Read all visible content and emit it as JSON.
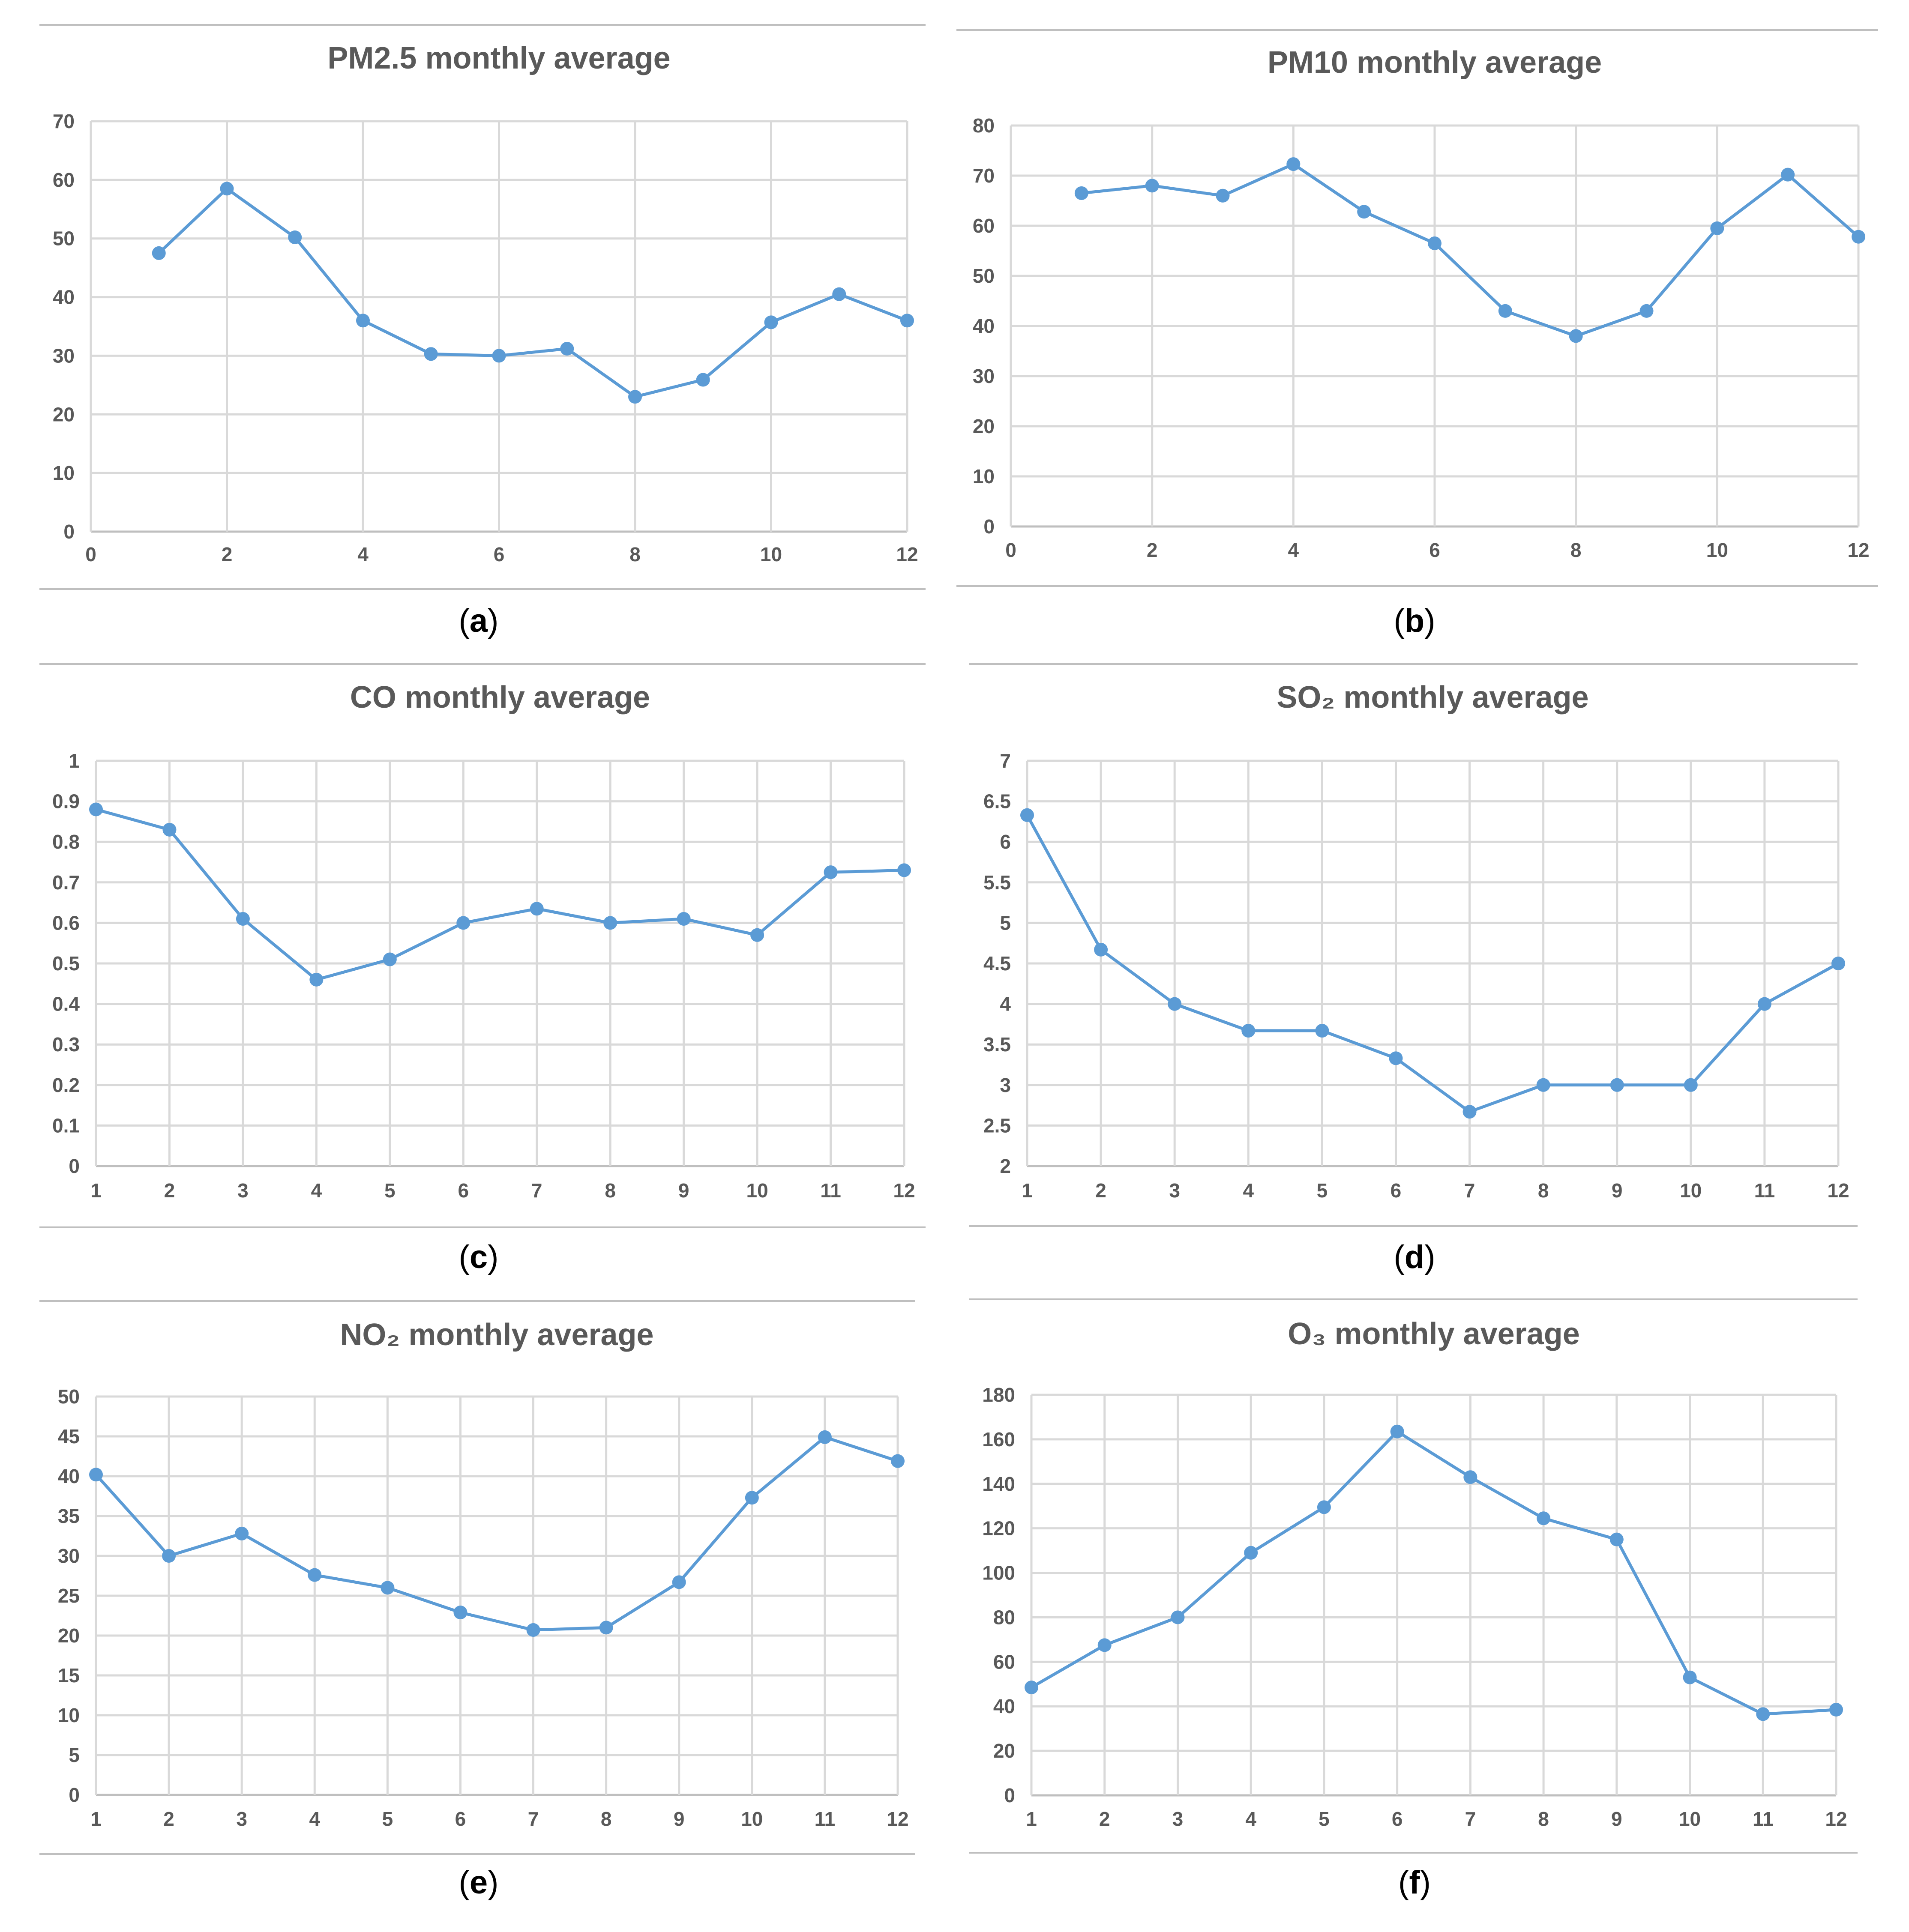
{
  "figure": {
    "line_color": "#5b9bd5",
    "grid_color": "#d9d9d9",
    "axis_color": "#bfbfbf",
    "title_color": "#595959",
    "tick_color": "#595959",
    "caption_color": "#000000"
  },
  "chart_data": [
    {
      "type": "line",
      "title": "PM2.5 monthly average",
      "caption": "(a)",
      "caption_letter": "a",
      "x_axis": {
        "min": 0,
        "max": 12,
        "ticks": [
          0,
          2,
          4,
          6,
          8,
          10,
          12
        ]
      },
      "y_axis": {
        "min": 0,
        "max": 70,
        "ticks": [
          0,
          10,
          20,
          30,
          40,
          50,
          60,
          70
        ]
      },
      "x": [
        1,
        2,
        3,
        4,
        5,
        6,
        7,
        8,
        9,
        10,
        11,
        12
      ],
      "values": [
        47.5,
        58.5,
        50.2,
        36,
        30.3,
        30,
        31.2,
        23,
        25.9,
        35.7,
        40.5,
        36
      ],
      "xlabel": "",
      "ylabel": "",
      "grid": true
    },
    {
      "type": "line",
      "title": "PM10 monthly average",
      "caption": "(b)",
      "caption_letter": "b",
      "x_axis": {
        "min": 0,
        "max": 12,
        "ticks": [
          0,
          2,
          4,
          6,
          8,
          10,
          12
        ]
      },
      "y_axis": {
        "min": 0,
        "max": 80,
        "ticks": [
          0,
          10,
          20,
          30,
          40,
          50,
          60,
          70,
          80
        ]
      },
      "x": [
        1,
        2,
        3,
        4,
        5,
        6,
        7,
        8,
        9,
        10,
        11,
        12
      ],
      "values": [
        66.5,
        68,
        66,
        72.3,
        62.8,
        56.5,
        43,
        38,
        43,
        59.5,
        70.2,
        57.8
      ],
      "xlabel": "",
      "ylabel": "",
      "grid": true
    },
    {
      "type": "line",
      "title": "CO monthly average",
      "caption": "(c)",
      "caption_letter": "c",
      "x_axis": {
        "min": 1,
        "max": 12,
        "ticks": [
          1,
          2,
          3,
          4,
          5,
          6,
          7,
          8,
          9,
          10,
          11,
          12
        ]
      },
      "y_axis": {
        "min": 0,
        "max": 1,
        "ticks": [
          "0",
          "0.1",
          "0.2",
          "0.3",
          "0.4",
          "0.5",
          "0.6",
          "0.7",
          "0.8",
          "0.9",
          "1"
        ]
      },
      "x": [
        1,
        2,
        3,
        4,
        5,
        6,
        7,
        8,
        9,
        10,
        11,
        12
      ],
      "values": [
        0.88,
        0.83,
        0.61,
        0.46,
        0.51,
        0.6,
        0.635,
        0.6,
        0.61,
        0.57,
        0.725,
        0.73
      ],
      "xlabel": "",
      "ylabel": "",
      "grid": true
    },
    {
      "type": "line",
      "title": "SO₂ monthly average",
      "caption": "(d)",
      "caption_letter": "d",
      "x_axis": {
        "min": 1,
        "max": 12,
        "ticks": [
          1,
          2,
          3,
          4,
          5,
          6,
          7,
          8,
          9,
          10,
          11,
          12
        ]
      },
      "y_axis": {
        "min": 2,
        "max": 7,
        "ticks": [
          "2",
          "2.5",
          "3",
          "3.5",
          "4",
          "4.5",
          "5",
          "5.5",
          "6",
          "6.5",
          "7"
        ]
      },
      "x": [
        1,
        2,
        3,
        4,
        5,
        6,
        7,
        8,
        9,
        10,
        11,
        12
      ],
      "values": [
        6.33,
        4.67,
        4,
        3.67,
        3.67,
        3.33,
        2.67,
        3,
        3,
        3,
        4,
        4.5
      ],
      "xlabel": "",
      "ylabel": "",
      "grid": true
    },
    {
      "type": "line",
      "title": "NO₂ monthly average",
      "caption": "(e)",
      "caption_letter": "e",
      "x_axis": {
        "min": 1,
        "max": 12,
        "ticks": [
          1,
          2,
          3,
          4,
          5,
          6,
          7,
          8,
          9,
          10,
          11,
          12
        ]
      },
      "y_axis": {
        "min": 0,
        "max": 50,
        "ticks": [
          0,
          5,
          10,
          15,
          20,
          25,
          30,
          35,
          40,
          45,
          50
        ]
      },
      "x": [
        1,
        2,
        3,
        4,
        5,
        6,
        7,
        8,
        9,
        10,
        11,
        12
      ],
      "values": [
        40.2,
        30,
        32.8,
        27.6,
        26,
        22.9,
        20.7,
        21,
        26.7,
        37.3,
        44.9,
        41.9
      ],
      "xlabel": "",
      "ylabel": "",
      "grid": true
    },
    {
      "type": "line",
      "title": "O₃ monthly average",
      "caption": "(f)",
      "caption_letter": "f",
      "x_axis": {
        "min": 1,
        "max": 12,
        "ticks": [
          1,
          2,
          3,
          4,
          5,
          6,
          7,
          8,
          9,
          10,
          11,
          12
        ]
      },
      "y_axis": {
        "min": 0,
        "max": 180,
        "ticks": [
          0,
          20,
          40,
          60,
          80,
          100,
          120,
          140,
          160,
          180
        ]
      },
      "x": [
        1,
        2,
        3,
        4,
        5,
        6,
        7,
        8,
        9,
        10,
        11,
        12
      ],
      "values": [
        48.5,
        67.5,
        80,
        109,
        129.5,
        163.5,
        143,
        124.5,
        115,
        53,
        36.5,
        38.5
      ],
      "xlabel": "",
      "ylabel": "",
      "grid": true
    }
  ]
}
